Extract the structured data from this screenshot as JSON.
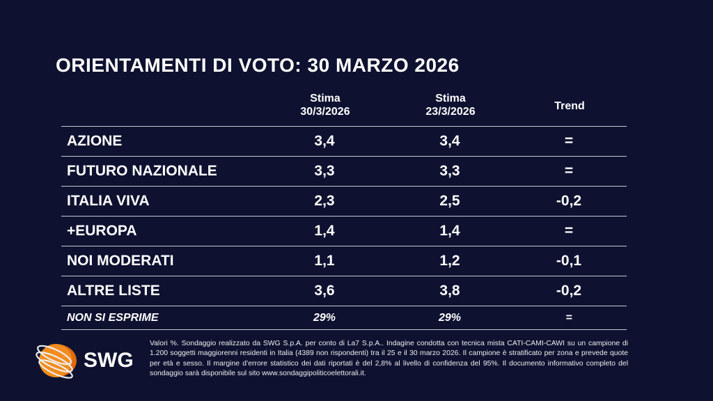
{
  "title": "ORIENTAMENTI DI VOTO: 30 MARZO 2026",
  "headers": {
    "col1_l1": "Stima",
    "col1_l2": "30/3/2026",
    "col2_l1": "Stima",
    "col2_l2": "23/3/2026",
    "trend": "Trend"
  },
  "rows": [
    {
      "name": "AZIONE",
      "v1": "3,4",
      "v2": "3,4",
      "trend": "="
    },
    {
      "name": "FUTURO NAZIONALE",
      "v1": "3,3",
      "v2": "3,3",
      "trend": "="
    },
    {
      "name": "ITALIA VIVA",
      "v1": "2,3",
      "v2": "2,5",
      "trend": "-0,2"
    },
    {
      "name": "+EUROPA",
      "v1": "1,4",
      "v2": "1,4",
      "trend": "="
    },
    {
      "name": "NOI MODERATI",
      "v1": "1,1",
      "v2": "1,2",
      "trend": "-0,1"
    },
    {
      "name": "ALTRE LISTE",
      "v1": "3,6",
      "v2": "3,8",
      "trend": "-0,2"
    },
    {
      "name": "NON SI ESPRIME",
      "v1": "29%",
      "v2": "29%",
      "trend": "="
    }
  ],
  "note": "Valori %. Sondaggio realizzato da SWG S.p.A. per conto di La7 S.p.A.. Indagine condotta con tecnica mista CATI-CAMI-CAWI su un campione di 1.200 soggetti maggiorenni residenti in Italia (4389 non rispondenti) tra il 25 e il 30 marzo 2026. Il campione è stratificato per zona e prevede quote per età e sesso. Il margine d’errore statistico dei dati riportati è del 2,8% al livello di confidenza del 95%. Il documento informativo completo del sondaggio sarà disponibile sul sito www.sondaggipoliticoelettorali.it.",
  "logo": {
    "text": "SWG",
    "color": "#f28c1e"
  }
}
